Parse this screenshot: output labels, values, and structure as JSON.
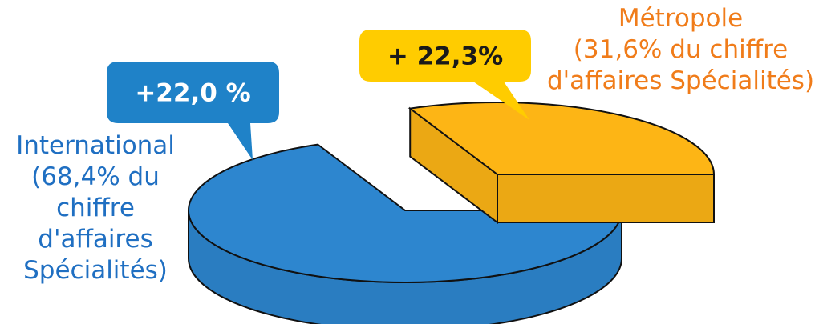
{
  "chart_data": {
    "type": "pie",
    "style": "3d-exploded",
    "slices": [
      {
        "key": "international",
        "label_lines": [
          "International",
          "(68,4% du",
          "chiffre",
          "d'affaires",
          "Spécialités)"
        ],
        "value": 68.4,
        "growth": "+22,0 %",
        "color": "#2d86cf"
      },
      {
        "key": "metropole",
        "label_lines": [
          "Métropole",
          "(31,6% du chiffre",
          "d'affaires Spécialités)"
        ],
        "value": 31.6,
        "growth": "+ 22,3%",
        "color": "#fdb515"
      }
    ],
    "callout_colors": {
      "international": "#1f82c8",
      "metropole": "#ffcc00"
    },
    "label_colors": {
      "international": "#1f6fc2",
      "metropole": "#f07c1a"
    }
  }
}
